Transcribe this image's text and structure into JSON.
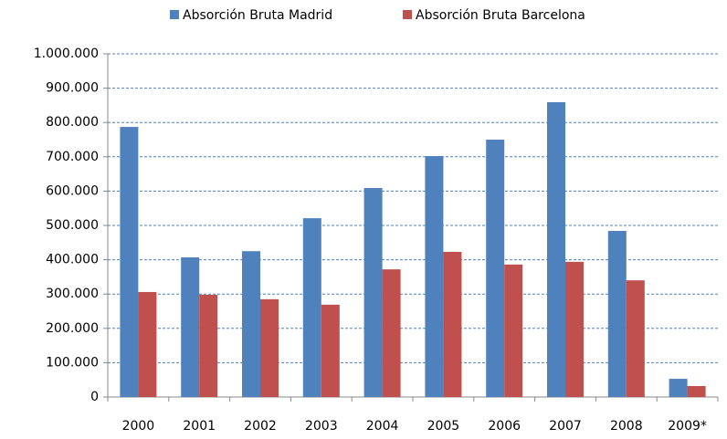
{
  "chart_data": {
    "type": "bar",
    "categories": [
      "2000",
      "2001",
      "2002",
      "2003",
      "2004",
      "2005",
      "2006",
      "2007",
      "2008",
      "2009*"
    ],
    "series": [
      {
        "name": "Absorción Bruta Madrid",
        "color": "#4f81bd",
        "values": [
          787000,
          407000,
          425000,
          521000,
          609000,
          702000,
          750000,
          859000,
          484000,
          53000
        ]
      },
      {
        "name": "Absorción Bruta Barcelona",
        "color": "#c0504d",
        "values": [
          306000,
          298000,
          285000,
          269000,
          372000,
          423000,
          386000,
          394000,
          340000,
          32000
        ]
      }
    ],
    "ylim": [
      0,
      1000000
    ],
    "yticks": [
      0,
      {
        "value": 100000,
        "label": "100.000"
      },
      {
        "value": 200000,
        "label": "200.000"
      },
      {
        "value": 300000,
        "label": "300.000"
      },
      {
        "value": 400000,
        "label": "400.000"
      },
      {
        "value": 500000,
        "label": "500.000"
      },
      {
        "value": 600000,
        "label": "600.000"
      },
      {
        "value": 700000,
        "label": "700.000"
      },
      {
        "value": 800000,
        "label": "800.000"
      },
      {
        "value": 900000,
        "label": "900.000"
      },
      {
        "value": 1000000,
        "label": "1.000.000"
      }
    ],
    "grid": true,
    "legend": "top"
  }
}
